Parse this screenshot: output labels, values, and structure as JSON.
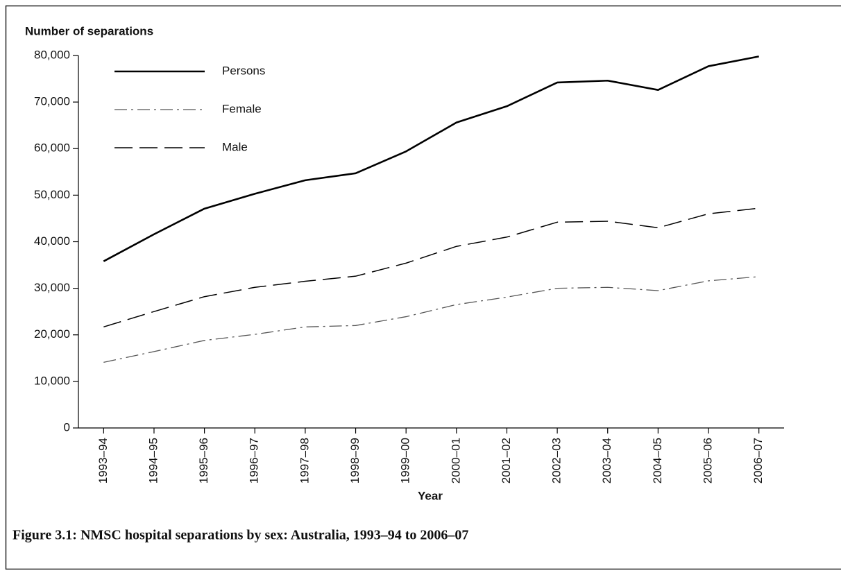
{
  "chart_data": {
    "type": "line",
    "title": "Figure 3.1: NMSC hospital separations by sex: Australia, 1993–94 to 2006–07",
    "y_label": "Number of separations",
    "x_label": "Year",
    "categories": [
      "1993–94",
      "1994–95",
      "1995–96",
      "1996–97",
      "1997–98",
      "1998–99",
      "1999–00",
      "2000–01",
      "2001–02",
      "2002–03",
      "2003–04",
      "2004–05",
      "2005–06",
      "2006–07"
    ],
    "series": [
      {
        "name": "Persons",
        "color": "#000000",
        "style": "solid",
        "values": [
          35800,
          41600,
          47100,
          50300,
          53200,
          54700,
          59400,
          65600,
          69100,
          74200,
          74600,
          72600,
          77700,
          79800
        ]
      },
      {
        "name": "Female",
        "color": "#555555",
        "style": "dashdot",
        "values": [
          14100,
          16400,
          18800,
          20100,
          21700,
          22000,
          23900,
          26500,
          28100,
          30000,
          30200,
          29500,
          31600,
          32500
        ]
      },
      {
        "name": "Male",
        "color": "#000000",
        "style": "dashed",
        "values": [
          21700,
          25000,
          28200,
          30200,
          31500,
          32600,
          35400,
          39000,
          41000,
          44200,
          44400,
          43000,
          46000,
          47200
        ]
      }
    ],
    "ylim": [
      0,
      80000
    ],
    "yticks": [
      0,
      {
        "value": 10000,
        "label": "10,000"
      },
      {
        "value": 20000,
        "label": "20,000"
      },
      {
        "value": 30000,
        "label": "30,000"
      },
      {
        "value": 40000,
        "label": "40,000"
      },
      {
        "value": 50000,
        "label": "50,000"
      },
      {
        "value": 60000,
        "label": "60,000"
      },
      {
        "value": 70000,
        "label": "70,000"
      },
      {
        "value": 80000,
        "label": "80,000"
      }
    ],
    "legend": "top-left"
  }
}
